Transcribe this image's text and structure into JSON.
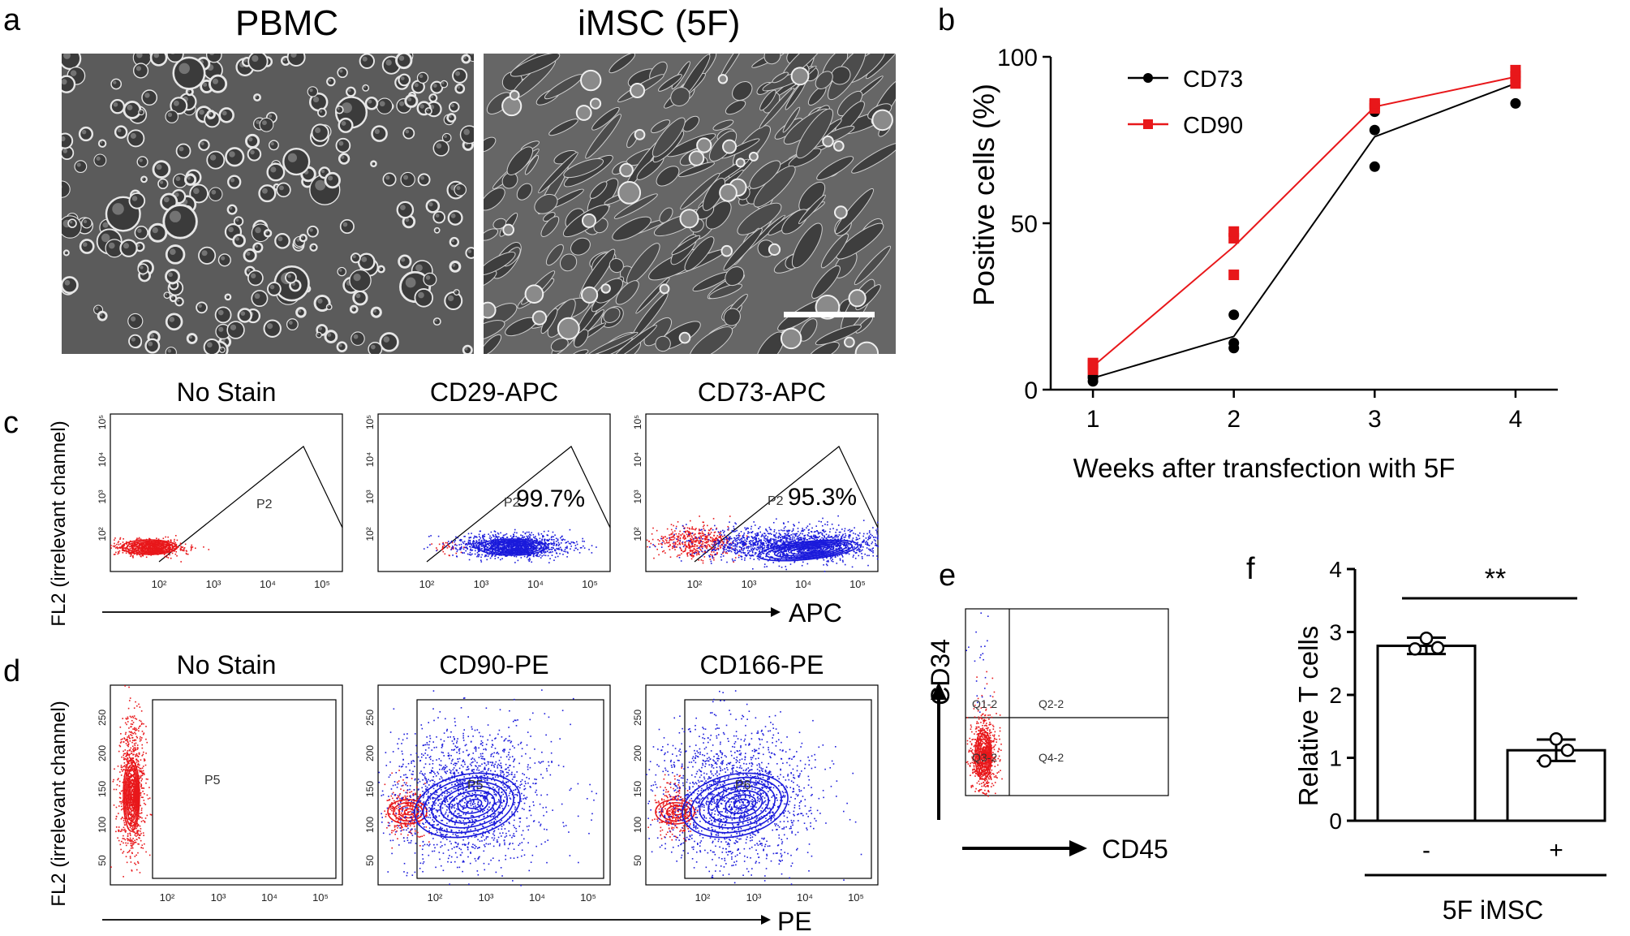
{
  "panel_labels": {
    "a": "a",
    "b": "b",
    "c": "c",
    "d": "d",
    "e": "e",
    "f": "f"
  },
  "panel_a": {
    "left_title": "PBMC",
    "right_title": "iMSC (5F)"
  },
  "chart_data": [
    {
      "id": "b",
      "type": "line",
      "xlabel": "Weeks after transfection with 5F",
      "ylabel": "Positive cells (%)",
      "xticks": [
        "1",
        "2",
        "3",
        "4"
      ],
      "yticks": [
        "0",
        "50",
        "100"
      ],
      "xlim": [
        0.7,
        4.3
      ],
      "ylim": [
        0,
        100
      ],
      "legend_position": "top-left",
      "series": [
        {
          "name": "CD73",
          "color": "#000000",
          "marker": "circle",
          "x": [
            1,
            2,
            3,
            4
          ],
          "mean": [
            3.5,
            16,
            76,
            92
          ],
          "points": [
            [
              1,
              2.5
            ],
            [
              1,
              3.5
            ],
            [
              1,
              4
            ],
            [
              2,
              12.5
            ],
            [
              2,
              14
            ],
            [
              2,
              22.5
            ],
            [
              3,
              67
            ],
            [
              3,
              78
            ],
            [
              3,
              83.5
            ],
            [
              4,
              86
            ],
            [
              4,
              94
            ],
            [
              4,
              95.5
            ]
          ]
        },
        {
          "name": "CD90",
          "color": "#e8171a",
          "marker": "square",
          "x": [
            1,
            2,
            3,
            4
          ],
          "mean": [
            7,
            43,
            85,
            94
          ],
          "points": [
            [
              1,
              6
            ],
            [
              1,
              7.5
            ],
            [
              1,
              8
            ],
            [
              2,
              34.5
            ],
            [
              2,
              45.5
            ],
            [
              2,
              47.5
            ],
            [
              3,
              84.5
            ],
            [
              3,
              85.5
            ],
            [
              3,
              86
            ],
            [
              4,
              92
            ],
            [
              4,
              94
            ],
            [
              4,
              96
            ]
          ]
        }
      ]
    },
    {
      "id": "f",
      "type": "bar",
      "ylabel": "Relative T cells",
      "categories": [
        "-",
        "+"
      ],
      "group_label": "5F iMSC",
      "values": [
        2.78,
        1.12
      ],
      "errors": [
        0.13,
        0.17
      ],
      "points": [
        [
          2.73,
          2.75,
          2.9
        ],
        [
          0.95,
          1.12,
          1.3
        ]
      ],
      "ylim": [
        0,
        4
      ],
      "yticks": [
        "0",
        "1",
        "2",
        "3",
        "4"
      ],
      "significance": "**"
    }
  ],
  "panel_c": {
    "ylabel": "FL2 (irrelevant channel)",
    "xlabel": "APC",
    "plots": [
      {
        "title": "No Stain",
        "gate": "P2",
        "percent": ""
      },
      {
        "title": "CD29-APC",
        "gate": "P2",
        "percent": "99.7%"
      },
      {
        "title": "CD73-APC",
        "gate": "P2",
        "percent": "95.3%"
      }
    ],
    "xticks": [
      "10²",
      "10³",
      "10⁴",
      "10⁵"
    ],
    "yticks": [
      "10²",
      "10³",
      "10⁴",
      "10⁵"
    ]
  },
  "panel_d": {
    "ylabel": "FL2 (irrelevant channel)",
    "xlabel": "PE",
    "plots": [
      {
        "title": "No Stain",
        "gate": "P5"
      },
      {
        "title": "CD90-PE",
        "gate": "P5"
      },
      {
        "title": "CD166-PE",
        "gate": "P6"
      }
    ],
    "xticks": [
      "10²",
      "10³",
      "10⁴",
      "10⁵"
    ],
    "yticks": [
      "50",
      "100",
      "150",
      "200",
      "250"
    ]
  },
  "panel_e": {
    "ylabel": "CD34",
    "xlabel": "CD45",
    "quadrants": [
      "Q1-2",
      "Q2-2",
      "Q3-2",
      "Q4-2"
    ]
  },
  "colors": {
    "negative": "#e8171a",
    "positive": "#1a1adb",
    "cd90_line": "#e8171a"
  }
}
